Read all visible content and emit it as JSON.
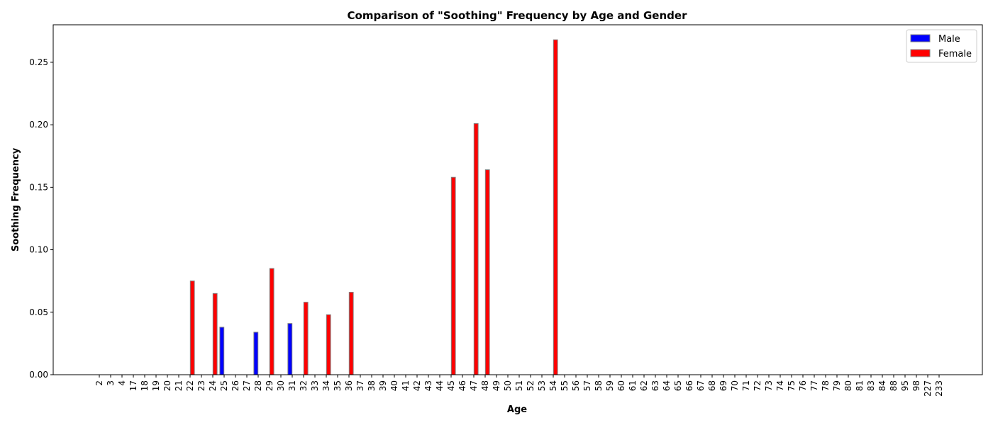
{
  "chart_data": {
    "type": "bar",
    "title": "Comparison of \"Soothing\" Frequency by Age and Gender",
    "xlabel": "Age",
    "ylabel": "Soothing Frequency",
    "ylim": [
      0,
      0.28
    ],
    "yticks": [
      "0.00",
      "0.05",
      "0.10",
      "0.15",
      "0.20",
      "0.25"
    ],
    "categories": [
      "2",
      "3",
      "4",
      "17",
      "18",
      "19",
      "20",
      "21",
      "22",
      "23",
      "24",
      "25",
      "26",
      "27",
      "28",
      "29",
      "30",
      "31",
      "32",
      "33",
      "34",
      "35",
      "36",
      "37",
      "38",
      "39",
      "40",
      "41",
      "42",
      "43",
      "44",
      "45",
      "46",
      "47",
      "48",
      "49",
      "50",
      "51",
      "52",
      "53",
      "54",
      "55",
      "56",
      "57",
      "58",
      "59",
      "60",
      "61",
      "62",
      "63",
      "64",
      "65",
      "66",
      "67",
      "68",
      "69",
      "70",
      "71",
      "72",
      "73",
      "74",
      "75",
      "76",
      "77",
      "78",
      "79",
      "80",
      "81",
      "83",
      "84",
      "88",
      "95",
      "98",
      "227",
      "233"
    ],
    "series": [
      {
        "name": "Male",
        "color": "#0000ff",
        "values": [
          0,
          0,
          0,
          0,
          0,
          0,
          0,
          0,
          0,
          0,
          0,
          0.038,
          0,
          0,
          0.034,
          0,
          0,
          0.041,
          0,
          0,
          0,
          0,
          0,
          0,
          0,
          0,
          0,
          0,
          0,
          0,
          0,
          0,
          0,
          0,
          0,
          0,
          0,
          0,
          0,
          0,
          0,
          0,
          0,
          0,
          0,
          0,
          0,
          0,
          0,
          0,
          0,
          0,
          0,
          0,
          0,
          0,
          0,
          0,
          0,
          0,
          0,
          0,
          0,
          0,
          0,
          0,
          0,
          0,
          0,
          0,
          0,
          0,
          0,
          0,
          0
        ]
      },
      {
        "name": "Female",
        "color": "#ff0000",
        "values": [
          0,
          0,
          0,
          0,
          0,
          0,
          0,
          0,
          0.075,
          0,
          0.065,
          0,
          0,
          0,
          0,
          0.085,
          0,
          0,
          0.058,
          0,
          0.048,
          0,
          0.066,
          0,
          0,
          0,
          0,
          0,
          0,
          0,
          0,
          0.158,
          0,
          0.201,
          0.164,
          0,
          0,
          0,
          0,
          0,
          0.268,
          0,
          0,
          0,
          0,
          0,
          0,
          0,
          0,
          0,
          0,
          0,
          0,
          0,
          0,
          0,
          0,
          0,
          0,
          0,
          0,
          0,
          0,
          0,
          0,
          0,
          0,
          0,
          0,
          0,
          0,
          0,
          0,
          0,
          0
        ]
      }
    ],
    "grid": false,
    "legend_position": "top-right"
  }
}
